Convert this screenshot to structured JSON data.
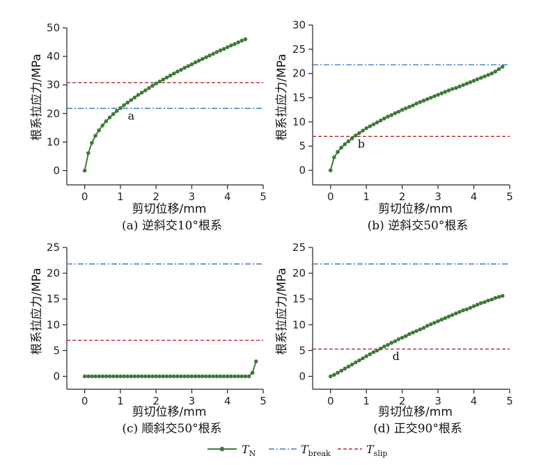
{
  "colors": {
    "series": "#3f7a3a",
    "break": "#3c7cc7",
    "slip": "#b3262b",
    "axis": "#222222"
  },
  "x_axis_label": "剪切位移/mm",
  "y_axis_label": "根系拉应力/MPa",
  "legend": [
    {
      "symbol": "T",
      "sub": "N",
      "style": "line-marker"
    },
    {
      "symbol": "T",
      "sub": "break",
      "style": "dash-dot"
    },
    {
      "symbol": "T",
      "sub": "slip",
      "style": "dashed"
    }
  ],
  "chart_data": [
    {
      "type": "line",
      "caption": "(a) 逆斜交10°根系",
      "xlim": [
        -0.5,
        5
      ],
      "ylim": [
        -5,
        50
      ],
      "xticks": [
        0,
        1,
        2,
        3,
        4,
        5
      ],
      "yticks": [
        0,
        10,
        20,
        30,
        40,
        50
      ],
      "T_break": 21.8,
      "T_slip": 30.8,
      "annotation": {
        "text": "a",
        "x": 1.13,
        "y": 21.8
      },
      "series": [
        {
          "name": "T_N",
          "x": [
            0,
            0.1,
            0.2,
            0.3,
            0.4,
            0.5,
            0.6,
            0.7,
            0.8,
            0.9,
            1.0,
            1.1,
            1.2,
            1.3,
            1.4,
            1.5,
            1.6,
            1.7,
            1.8,
            1.9,
            2.0,
            2.1,
            2.2,
            2.3,
            2.4,
            2.5,
            2.6,
            2.7,
            2.8,
            2.9,
            3.0,
            3.1,
            3.2,
            3.3,
            3.4,
            3.5,
            3.6,
            3.7,
            3.8,
            3.9,
            4.0,
            4.1,
            4.2,
            4.3,
            4.4,
            4.5
          ],
          "y": [
            0,
            6.1,
            9.7,
            12.2,
            14.1,
            15.8,
            17.3,
            18.6,
            19.8,
            20.9,
            21.9,
            22.9,
            23.8,
            24.7,
            25.6,
            26.5,
            27.3,
            28.1,
            28.9,
            29.7,
            30.5,
            31.2,
            31.9,
            32.6,
            33.3,
            34.0,
            34.7,
            35.3,
            36.0,
            36.6,
            37.2,
            37.9,
            38.5,
            39.1,
            39.7,
            40.3,
            40.9,
            41.5,
            42.1,
            42.6,
            43.2,
            43.8,
            44.3,
            44.9,
            45.5,
            46.0
          ]
        }
      ]
    },
    {
      "type": "line",
      "caption": "(b) 逆斜交50°根系",
      "xlim": [
        -0.5,
        5
      ],
      "ylim": [
        -3,
        30
      ],
      "xticks": [
        0,
        1,
        2,
        3,
        4,
        5
      ],
      "yticks": [
        0,
        5,
        10,
        15,
        20,
        25,
        30
      ],
      "T_break": 21.8,
      "T_slip": 7.0,
      "annotation": {
        "text": "b",
        "x": 0.68,
        "y": 7.0
      },
      "series": [
        {
          "name": "T_N",
          "x": [
            0,
            0.1,
            0.2,
            0.3,
            0.4,
            0.5,
            0.6,
            0.7,
            0.8,
            0.9,
            1.0,
            1.1,
            1.2,
            1.3,
            1.4,
            1.5,
            1.6,
            1.7,
            1.8,
            1.9,
            2.0,
            2.1,
            2.2,
            2.3,
            2.4,
            2.5,
            2.6,
            2.7,
            2.8,
            2.9,
            3.0,
            3.1,
            3.2,
            3.3,
            3.4,
            3.5,
            3.6,
            3.7,
            3.8,
            3.9,
            4.0,
            4.1,
            4.2,
            4.3,
            4.4,
            4.5,
            4.6,
            4.7,
            4.8
          ],
          "y": [
            0,
            2.7,
            3.8,
            4.7,
            5.4,
            6.0,
            6.6,
            7.2,
            7.7,
            8.2,
            8.7,
            9.1,
            9.5,
            9.9,
            10.3,
            10.7,
            11.1,
            11.4,
            11.8,
            12.1,
            12.5,
            12.8,
            13.1,
            13.4,
            13.8,
            14.1,
            14.4,
            14.7,
            15.0,
            15.3,
            15.6,
            15.9,
            16.2,
            16.5,
            16.8,
            17.0,
            17.3,
            17.6,
            17.9,
            18.2,
            18.5,
            18.8,
            19.1,
            19.4,
            19.7,
            20.0,
            20.4,
            20.9,
            21.4
          ]
        }
      ]
    },
    {
      "type": "line",
      "caption": "(c) 顺斜交50°根系",
      "xlim": [
        -0.5,
        5
      ],
      "ylim": [
        -2.5,
        25
      ],
      "xticks": [
        0,
        1,
        2,
        3,
        4,
        5
      ],
      "yticks": [
        0,
        5,
        10,
        15,
        20,
        25
      ],
      "T_break": 21.8,
      "T_slip": 7.0,
      "annotation": null,
      "series": [
        {
          "name": "T_N",
          "x": [
            0,
            0.1,
            0.2,
            0.3,
            0.4,
            0.5,
            0.6,
            0.7,
            0.8,
            0.9,
            1.0,
            1.1,
            1.2,
            1.3,
            1.4,
            1.5,
            1.6,
            1.7,
            1.8,
            1.9,
            2.0,
            2.1,
            2.2,
            2.3,
            2.4,
            2.5,
            2.6,
            2.7,
            2.8,
            2.9,
            3.0,
            3.1,
            3.2,
            3.3,
            3.4,
            3.5,
            3.6,
            3.7,
            3.8,
            3.9,
            4.0,
            4.1,
            4.2,
            4.3,
            4.4,
            4.5,
            4.6,
            4.7,
            4.8
          ],
          "y": [
            0,
            0,
            0,
            0,
            0,
            0,
            0,
            0,
            0,
            0,
            0,
            0,
            0,
            0,
            0,
            0,
            0,
            0,
            0,
            0,
            0,
            0,
            0,
            0,
            0,
            0,
            0,
            0,
            0,
            0,
            0,
            0,
            0,
            0,
            0,
            0,
            0,
            0,
            0,
            0,
            0,
            0,
            0,
            0,
            0,
            0,
            0,
            0.7,
            2.9
          ]
        }
      ]
    },
    {
      "type": "line",
      "caption": "(d) 正交90°根系",
      "xlim": [
        -0.5,
        5
      ],
      "ylim": [
        -2.5,
        25
      ],
      "xticks": [
        0,
        1,
        2,
        3,
        4,
        5
      ],
      "yticks": [
        0,
        5,
        10,
        15,
        20,
        25
      ],
      "T_break": 21.8,
      "T_slip": 5.3,
      "annotation": {
        "text": "d",
        "x": 1.65,
        "y": 5.3
      },
      "series": [
        {
          "name": "T_N",
          "x": [
            0,
            0.1,
            0.2,
            0.3,
            0.4,
            0.5,
            0.6,
            0.7,
            0.8,
            0.9,
            1.0,
            1.1,
            1.2,
            1.3,
            1.4,
            1.5,
            1.6,
            1.7,
            1.8,
            1.9,
            2.0,
            2.1,
            2.2,
            2.3,
            2.4,
            2.5,
            2.6,
            2.7,
            2.8,
            2.9,
            3.0,
            3.1,
            3.2,
            3.3,
            3.4,
            3.5,
            3.6,
            3.7,
            3.8,
            3.9,
            4.0,
            4.1,
            4.2,
            4.3,
            4.4,
            4.5,
            4.6,
            4.7,
            4.8
          ],
          "y": [
            0,
            0.3,
            0.7,
            1.1,
            1.5,
            1.9,
            2.3,
            2.7,
            3.1,
            3.5,
            3.9,
            4.3,
            4.7,
            5.0,
            5.4,
            5.8,
            6.1,
            6.5,
            6.8,
            7.2,
            7.5,
            7.8,
            8.2,
            8.5,
            8.8,
            9.1,
            9.4,
            9.8,
            10.1,
            10.4,
            10.7,
            11.0,
            11.3,
            11.6,
            11.9,
            12.2,
            12.5,
            12.8,
            13.0,
            13.3,
            13.6,
            13.9,
            14.2,
            14.4,
            14.7,
            14.9,
            15.2,
            15.4,
            15.6
          ]
        }
      ]
    }
  ]
}
